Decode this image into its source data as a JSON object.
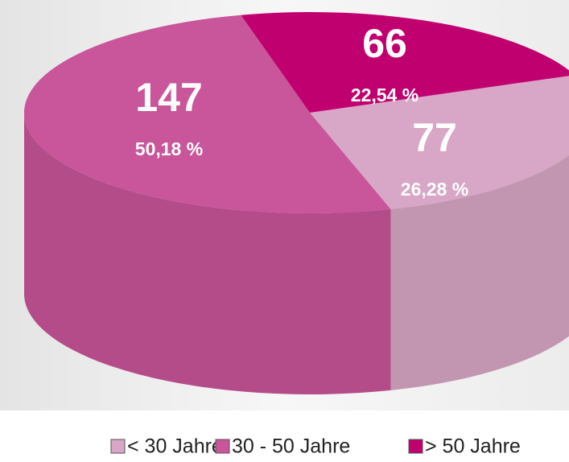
{
  "chart_data": {
    "type": "pie3d",
    "categories": [
      "< 30 Jahre",
      "30 - 50 Jahre",
      "> 50 Jahre"
    ],
    "values": [
      77,
      147,
      66
    ],
    "shares": [
      26.28,
      50.18,
      22.54
    ],
    "share_labels": [
      "26,28 %",
      "50,18 %",
      "22,54 %"
    ],
    "colors": [
      "#d8a6c6",
      "#c9559a",
      "#c0006e"
    ],
    "legend": "bottom"
  }
}
